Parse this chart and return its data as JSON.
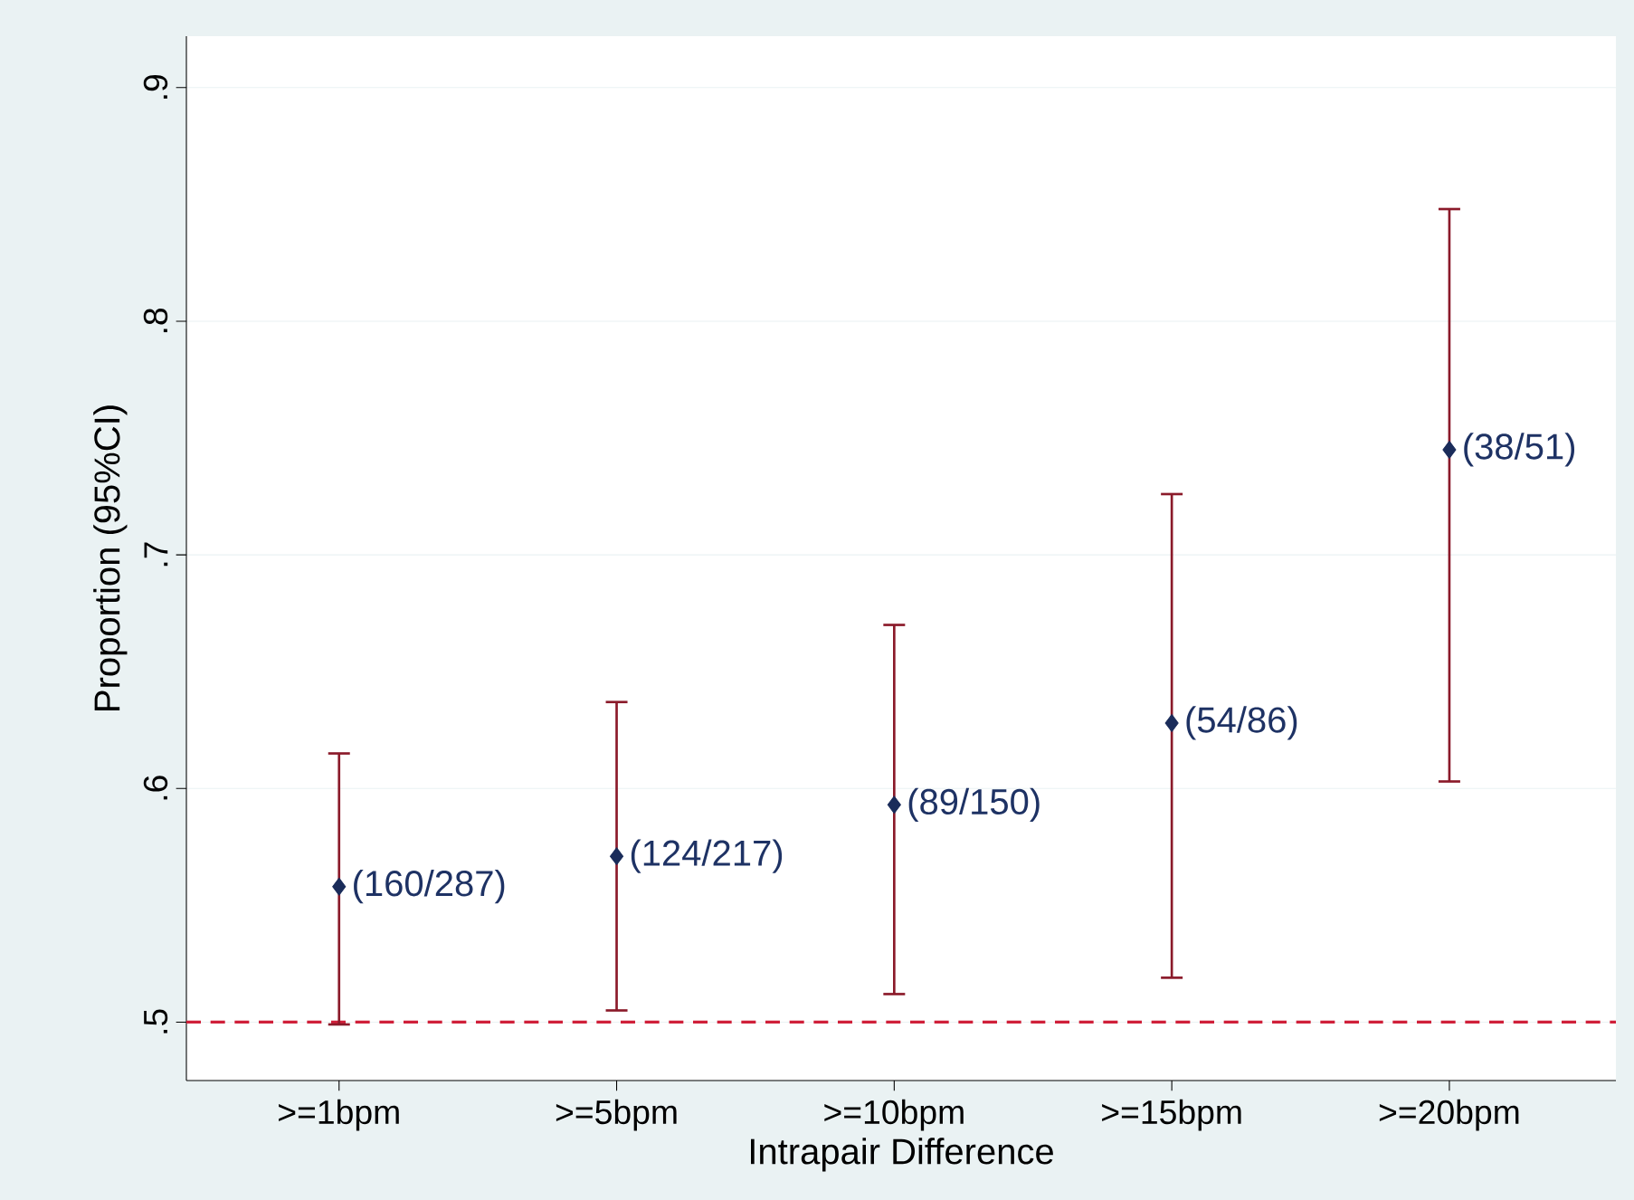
{
  "chart_data": {
    "type": "scatter",
    "xlabel": "Intrapair Difference",
    "ylabel": "Proportion (95%CI)",
    "categories": [
      ">=1bpm",
      ">=5bpm",
      ">=10bpm",
      ">=15bpm",
      ">=20bpm"
    ],
    "values": [
      0.558,
      0.571,
      0.593,
      0.628,
      0.745
    ],
    "errors": [
      [
        0.499,
        0.615
      ],
      [
        0.505,
        0.637
      ],
      [
        0.512,
        0.67
      ],
      [
        0.519,
        0.726
      ],
      [
        0.603,
        0.848
      ]
    ],
    "value_labels": [
      "(160/287)",
      "(124/217)",
      "(89/150)",
      "(54/86)",
      "(38/51)"
    ],
    "color": "#1a2c5a",
    "marker": "diamond",
    "ylim": [
      0.475,
      0.922
    ],
    "yticks": [
      {
        "value": 0.5,
        "label": ".5"
      },
      {
        "value": 0.6,
        "label": ".6"
      },
      {
        "value": 0.7,
        "label": ".7"
      },
      {
        "value": 0.8,
        "label": ".8"
      },
      {
        "value": 0.9,
        "label": ".9"
      }
    ],
    "grid": "y",
    "ref_lines": [
      {
        "axis": "y",
        "value": 0.5,
        "color": "#d0203a",
        "line_style": "dashed"
      }
    ]
  }
}
